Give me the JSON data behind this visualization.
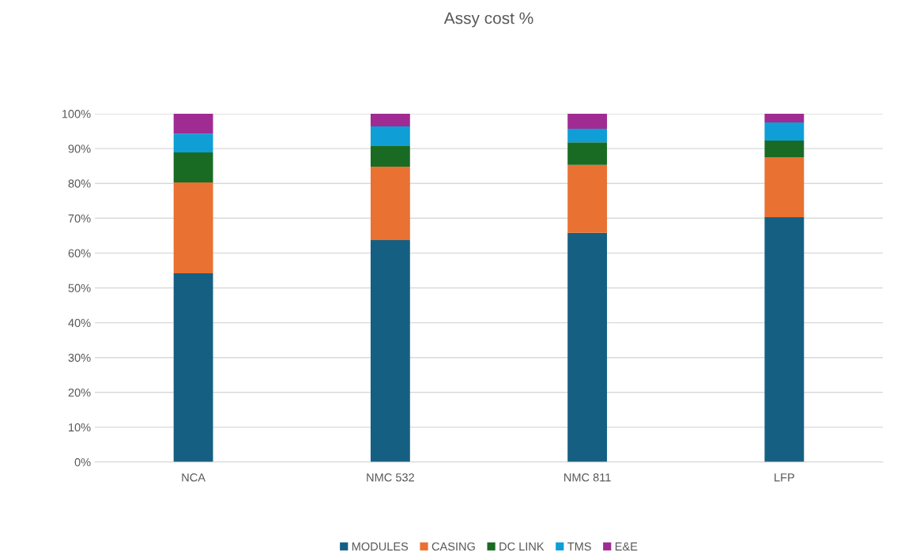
{
  "chart_data": {
    "type": "bar",
    "title": "Assy cost %",
    "stacked": true,
    "categories": [
      "NCA",
      "NMC 532",
      "NMC 811",
      "LFP"
    ],
    "series": [
      {
        "name": "MODULES",
        "color": "#156082",
        "values": [
          54.2,
          63.7,
          65.8,
          70.3
        ]
      },
      {
        "name": "CASING",
        "color": "#e97132",
        "values": [
          26.1,
          21.1,
          19.5,
          17.2
        ]
      },
      {
        "name": "DC LINK",
        "color": "#196b24",
        "values": [
          8.6,
          6.1,
          6.5,
          4.8
        ]
      },
      {
        "name": "TMS",
        "color": "#0f9ed5",
        "values": [
          5.4,
          5.5,
          3.9,
          5.2
        ]
      },
      {
        "name": "E&E",
        "color": "#a02b93",
        "values": [
          5.7,
          3.6,
          4.3,
          2.5
        ]
      }
    ],
    "ylim": [
      0,
      100
    ],
    "yticks": [
      {
        "value": 0,
        "label": "0%"
      },
      {
        "value": 10,
        "label": "10%"
      },
      {
        "value": 20,
        "label": "20%"
      },
      {
        "value": 30,
        "label": "30%"
      },
      {
        "value": 40,
        "label": "40%"
      },
      {
        "value": 50,
        "label": "50%"
      },
      {
        "value": 60,
        "label": "60%"
      },
      {
        "value": 70,
        "label": "70%"
      },
      {
        "value": 80,
        "label": "80%"
      },
      {
        "value": 90,
        "label": "90%"
      },
      {
        "value": 100,
        "label": "100%"
      }
    ],
    "grid": "y",
    "legend": "bottom"
  }
}
